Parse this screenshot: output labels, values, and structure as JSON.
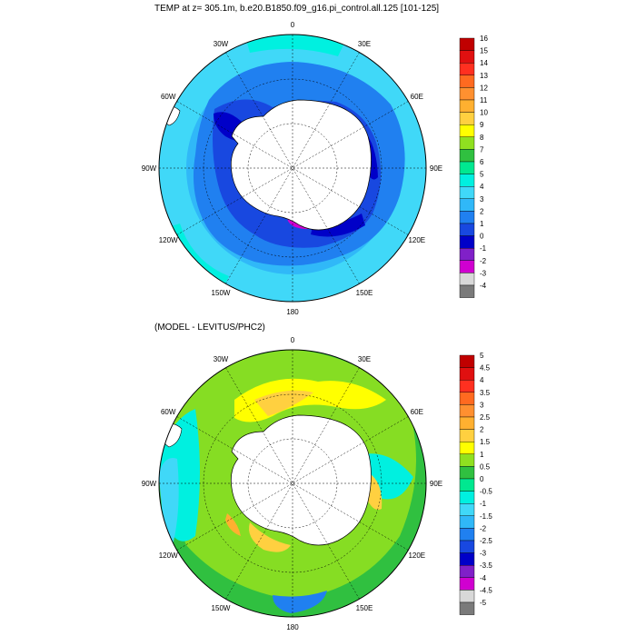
{
  "top_panel": {
    "title": "TEMP at z= 305.1m, b.e20.B1850.f09_g16.pi_control.all.125 [101-125]",
    "lon_labels": [
      "0",
      "30E",
      "60E",
      "90E",
      "120E",
      "150E",
      "180",
      "150W",
      "120W",
      "90W",
      "60W",
      "30W"
    ],
    "colorbar": {
      "labels": [
        "16",
        "15",
        "14",
        "13",
        "12",
        "11",
        "10",
        "9",
        "8",
        "7",
        "6",
        "5",
        "4",
        "3",
        "2",
        "1",
        "0",
        "-1",
        "-2",
        "-3",
        "-4"
      ],
      "colors": [
        "#c00000",
        "#e01010",
        "#ff3020",
        "#ff6a20",
        "#ff9030",
        "#ffb030",
        "#ffd040",
        "#ffff00",
        "#90e020",
        "#30c040",
        "#00e890",
        "#00f0e0",
        "#40d8f8",
        "#30b8f8",
        "#2080f0",
        "#1848e0",
        "#0000c8",
        "#8020c8",
        "#d000d0",
        "#d8d8d8",
        "#7a7a7a"
      ]
    }
  },
  "bottom_panel": {
    "title": "(MODEL - LEVITUS/PHC2)",
    "lon_labels": [
      "0",
      "30E",
      "60E",
      "90E",
      "120E",
      "150E",
      "180",
      "150W",
      "120W",
      "90W",
      "60W",
      "30W"
    ],
    "colorbar": {
      "labels": [
        "5",
        "4.5",
        "4",
        "3.5",
        "3",
        "2.5",
        "2",
        "1.5",
        "1",
        "0.5",
        "0",
        "-0.5",
        "-1",
        "-1.5",
        "-2",
        "-2.5",
        "-3",
        "-3.5",
        "-4",
        "-4.5",
        "-5"
      ],
      "colors": [
        "#c00000",
        "#e01010",
        "#ff3020",
        "#ff6a20",
        "#ff9030",
        "#ffb030",
        "#ffd040",
        "#ffff00",
        "#90e020",
        "#30c040",
        "#00e890",
        "#00f0e0",
        "#40d8f8",
        "#30b8f8",
        "#2080f0",
        "#1848e0",
        "#0000c8",
        "#8020c8",
        "#d000d0",
        "#d8d8d8",
        "#7a7a7a"
      ]
    }
  }
}
